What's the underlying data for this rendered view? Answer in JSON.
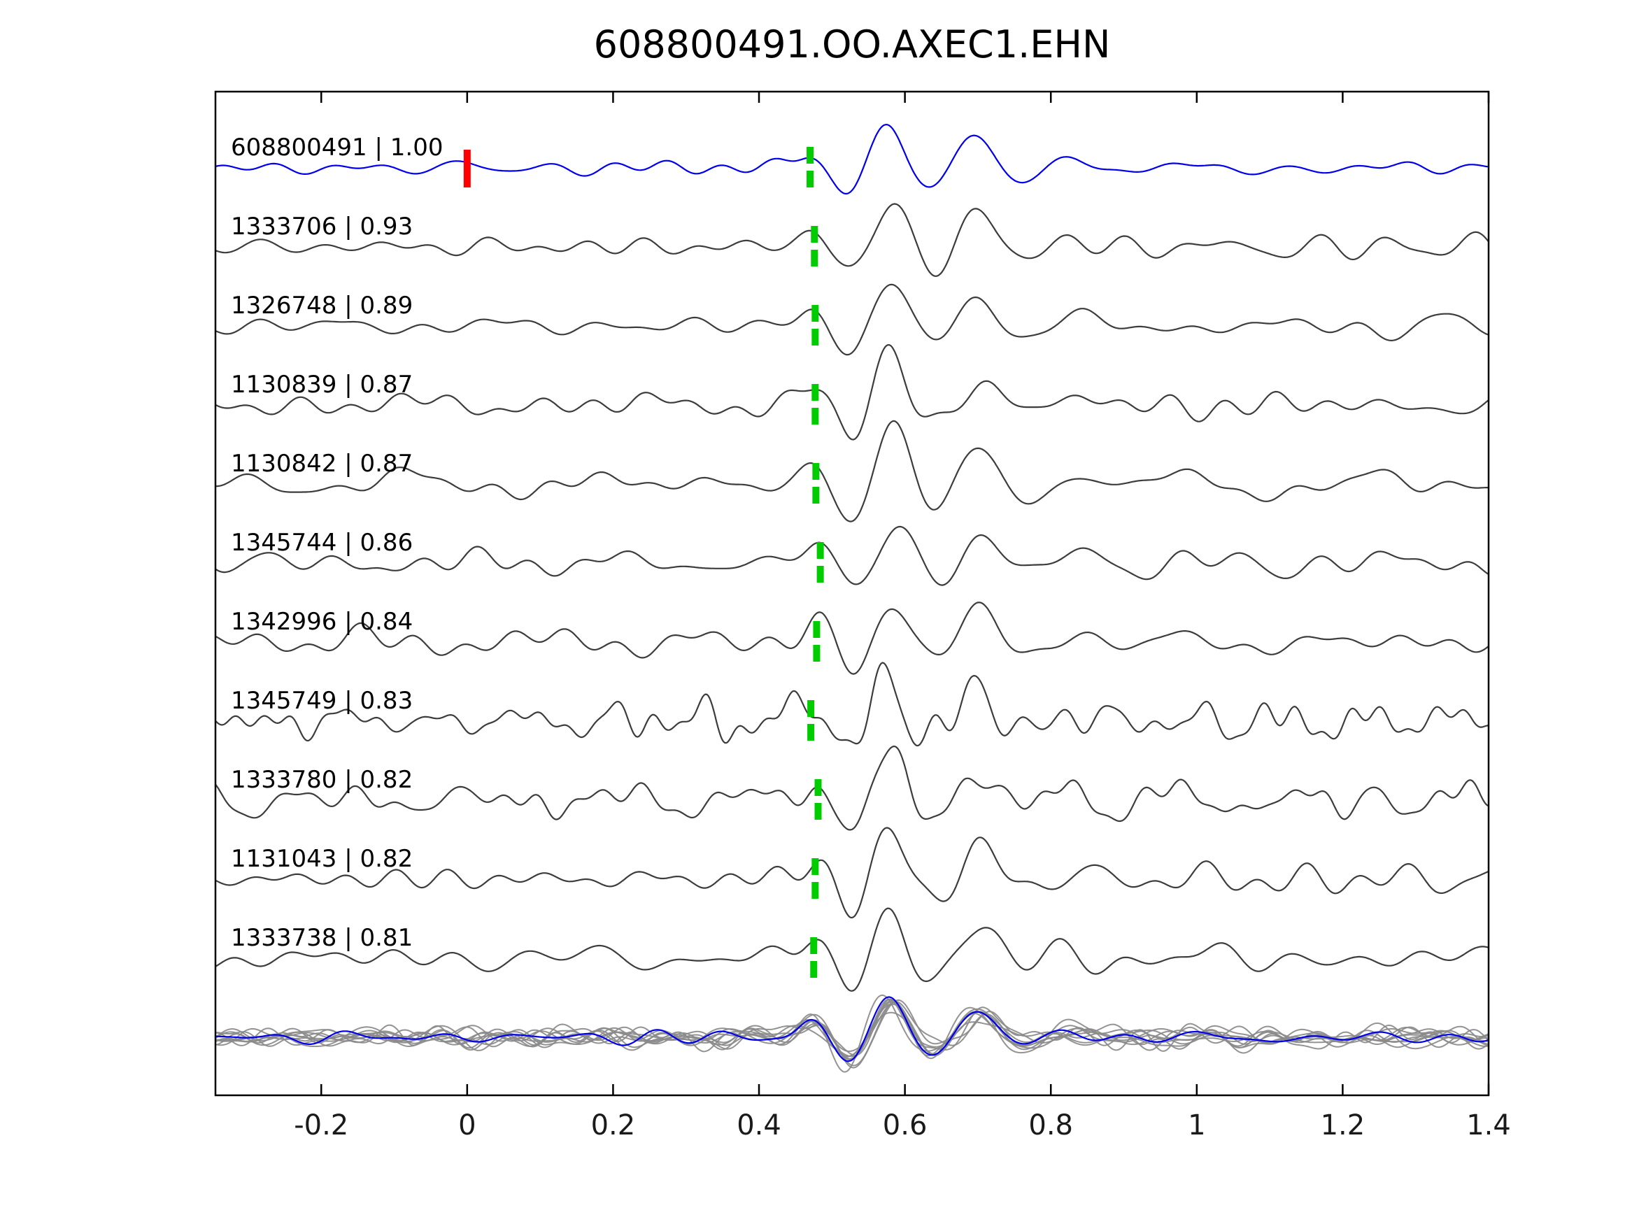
{
  "chart_data": {
    "type": "line",
    "title": "608800491.OO.AXEC1.EHN",
    "xlim": [
      -0.345,
      1.4
    ],
    "x_tick_values": [
      -0.2,
      0,
      0.2,
      0.4,
      0.6,
      0.8,
      1,
      1.2,
      1.4
    ],
    "x_ticks": [
      "-0.2",
      "0",
      "0.2",
      "0.4",
      "0.6",
      "0.8",
      "1",
      "1.2",
      "1.4"
    ],
    "grid": false,
    "legend": "none",
    "colors": {
      "reference_trace": "#0000ee",
      "match_trace": "#3c3c3c",
      "overlay_trace": "#8a8a8a",
      "pick_marker": "#00cc00",
      "reference_marker": "#ff0000",
      "axis": "#000000"
    },
    "reference_marker": {
      "x": 0,
      "trace": "608800491"
    },
    "label_separator": " | ",
    "traces": [
      {
        "id": "608800491",
        "cc": "1.00",
        "pick": 0.47,
        "reference": true
      },
      {
        "id": "1333706",
        "cc": "0.93",
        "pick": 0.476,
        "reference": false
      },
      {
        "id": "1326748",
        "cc": "0.89",
        "pick": 0.477,
        "reference": false
      },
      {
        "id": "1130839",
        "cc": "0.87",
        "pick": 0.477,
        "reference": false
      },
      {
        "id": "1130842",
        "cc": "0.87",
        "pick": 0.478,
        "reference": false
      },
      {
        "id": "1345744",
        "cc": "0.86",
        "pick": 0.484,
        "reference": false
      },
      {
        "id": "1342996",
        "cc": "0.84",
        "pick": 0.479,
        "reference": false
      },
      {
        "id": "1345749",
        "cc": "0.83",
        "pick": 0.471,
        "reference": false
      },
      {
        "id": "1333780",
        "cc": "0.82",
        "pick": 0.481,
        "reference": false
      },
      {
        "id": "1131043",
        "cc": "0.82",
        "pick": 0.477,
        "reference": false
      },
      {
        "id": "1333738",
        "cc": "0.81",
        "pick": 0.475,
        "reference": false
      }
    ],
    "overlay": {
      "description": "All matched traces superimposed in gray with the blue reference waveform on top, aligned on the pick time"
    }
  }
}
